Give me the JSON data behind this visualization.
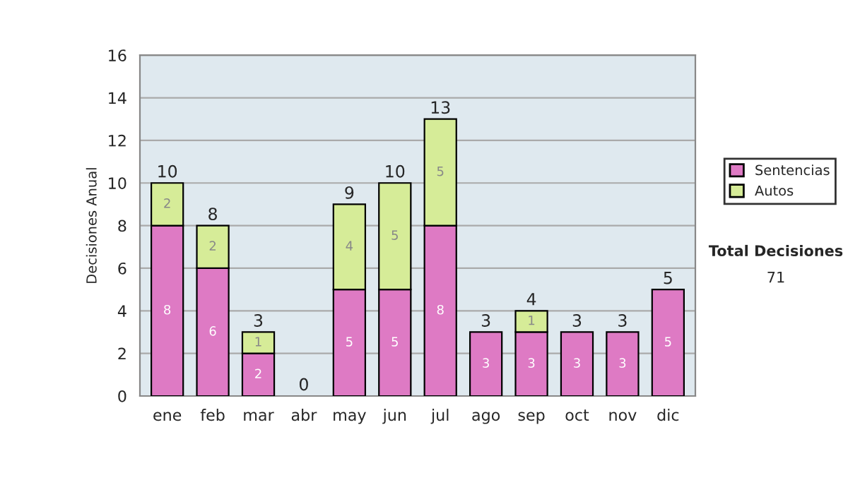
{
  "chart_data": {
    "type": "bar",
    "stacked": true,
    "ylabel": "Decisiones Anual",
    "categories": [
      "ene",
      "feb",
      "mar",
      "abr",
      "may",
      "jun",
      "jul",
      "ago",
      "sep",
      "oct",
      "nov",
      "dic"
    ],
    "series": [
      {
        "name": "Sentencias",
        "color": "#de7ac4",
        "values": [
          8,
          6,
          2,
          0,
          5,
          5,
          8,
          3,
          3,
          3,
          3,
          5
        ],
        "value_labels": [
          "8",
          "6",
          "2",
          null,
          "5",
          "5",
          "8",
          "3",
          "3",
          "3",
          "3",
          "5"
        ]
      },
      {
        "name": "Autos",
        "color": "#d6ec98",
        "values": [
          2,
          2,
          1,
          0,
          4,
          5,
          5,
          0,
          1,
          0,
          0,
          0
        ],
        "value_labels": [
          "2",
          "2",
          "1",
          null,
          "4",
          "5",
          "5",
          null,
          "1",
          null,
          null,
          null
        ]
      }
    ],
    "totals": [
      "10",
      "8",
      "3",
      "0",
      "9",
      "10",
      "13",
      "3",
      "4",
      "3",
      "3",
      "5"
    ],
    "ylim": [
      0,
      16
    ],
    "yticks": [
      0,
      2,
      4,
      6,
      8,
      10,
      12,
      14,
      16
    ],
    "grid": "y",
    "legend": "right",
    "annotations": [
      "Total Decisiones",
      "71"
    ]
  }
}
